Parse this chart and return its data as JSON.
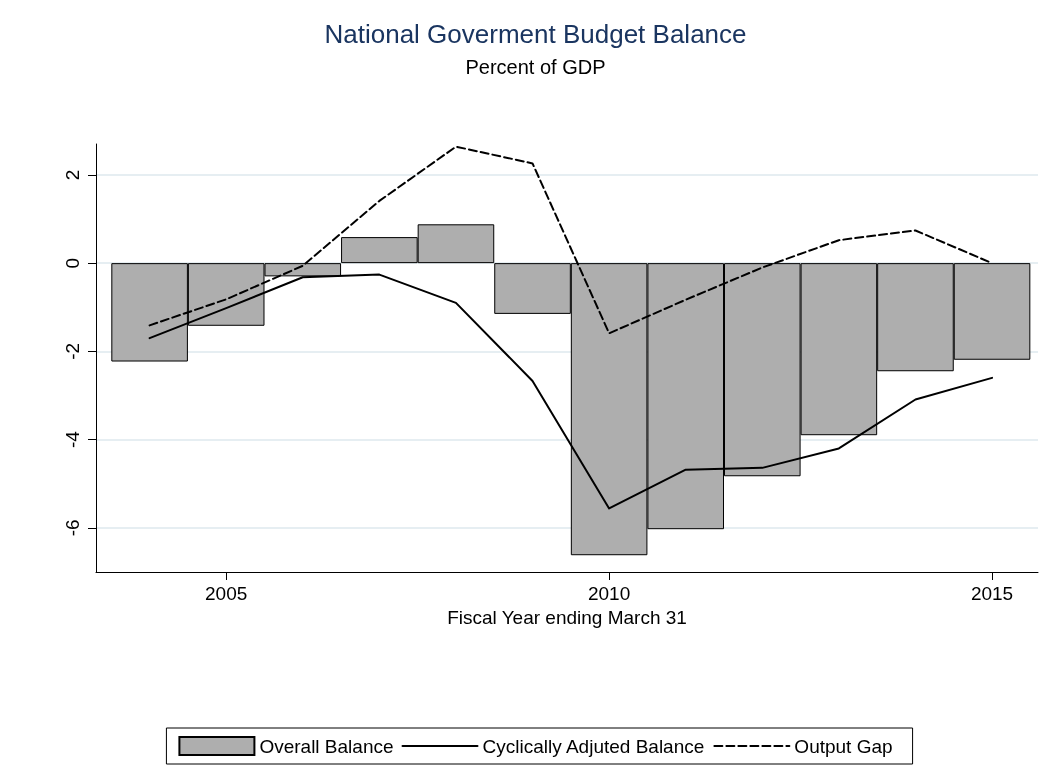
{
  "chart_data": {
    "type": "bar",
    "title": "National Goverment Budget Balance",
    "subtitle": "Percent of GDP",
    "xlabel": "Fiscal Year ending March 31",
    "x": [
      2004,
      2005,
      2006,
      2007,
      2008,
      2009,
      2010,
      2011,
      2012,
      2013,
      2014,
      2015
    ],
    "series": [
      {
        "name": "Overall Balance",
        "color": "#aeaeae",
        "values": [
          -2.23,
          -1.42,
          -0.3,
          0.59,
          0.88,
          -1.15,
          -6.62,
          -6.03,
          -4.83,
          -3.9,
          -2.45,
          -2.19
        ]
      },
      {
        "name": "Cyclically Adjuted Balance",
        "type": "line",
        "color": "#000000",
        "line_style": "solid",
        "values": [
          -1.7,
          -1.02,
          -0.32,
          -0.26,
          -0.9,
          -2.67,
          -5.56,
          -4.68,
          -4.64,
          -4.2,
          -3.09,
          -2.6
        ]
      },
      {
        "name": "Output Gap",
        "type": "line",
        "color": "#000000",
        "line_style": "dashed",
        "values": [
          -1.41,
          -0.82,
          -0.06,
          1.41,
          2.64,
          2.26,
          -1.59,
          -0.83,
          -0.1,
          0.52,
          0.74,
          0
        ]
      }
    ],
    "xlim": [
      2003.3,
      2015.6
    ],
    "xticks": [
      2005,
      2010,
      2015
    ],
    "ylim": [
      -7,
      2.7
    ],
    "yticks": [
      -6,
      -4,
      -2,
      0,
      2
    ],
    "grid": "y",
    "legend": "bottom",
    "marker": "none"
  }
}
